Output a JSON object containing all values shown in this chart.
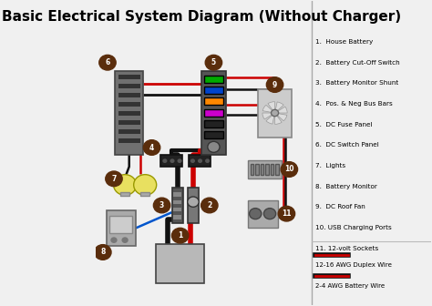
{
  "title": "Basic Electrical System Diagram (Without Charger)",
  "bg_color": "#f0f0f0",
  "title_fontsize": 11,
  "legend_items": [
    {
      "label": "1.  House Battery"
    },
    {
      "label": "2.  Battery Cut-Off Switch"
    },
    {
      "label": "3.  Battery Monitor Shunt"
    },
    {
      "label": "4.  Pos. & Neg Bus Bars"
    },
    {
      "label": "5.  DC Fuse Panel"
    },
    {
      "label": "6.  DC Switch Panel"
    },
    {
      "label": "7.  Lights"
    },
    {
      "label": "8.  Battery Monitor"
    },
    {
      "label": "9.  DC Roof Fan"
    },
    {
      "label": "10. USB Charging Ports"
    },
    {
      "label": "11. 12-volt Sockets"
    }
  ],
  "circle_color": "#5a2d0c",
  "circle_text_color": "#ffffff",
  "red_wire": "#cc0000",
  "black_wire": "#111111",
  "blue_wire": "#0055cc",
  "fuse_colors": [
    "#00aa00",
    "#0044cc",
    "#ff8800",
    "#cc00cc",
    "#222222",
    "#222222"
  ]
}
